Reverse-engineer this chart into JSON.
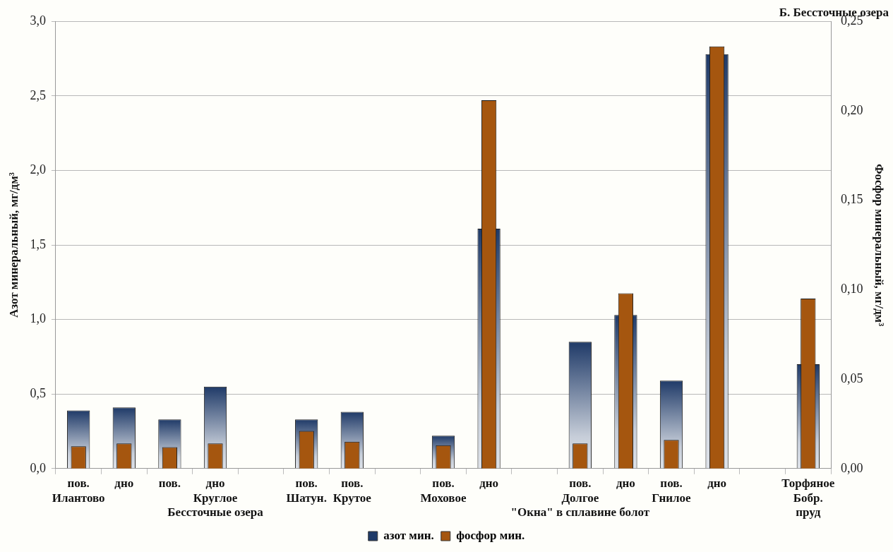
{
  "chart_data": {
    "type": "bar",
    "title": "Б. Бессточные озера",
    "ylabel": "Азот минеральный, мг/дм³",
    "y2label": "Фосфор минеральный, мг/дм³",
    "categories": [
      "пов.\nИлантово",
      "дно",
      "пов.",
      "дно\nКруглое\nБессточные озера",
      null,
      "пов.\nШатун.",
      "пов.\nКрутое",
      null,
      "пов.\nМоховое",
      "дно",
      null,
      "пов.\nДолгое\n\"Окна\" в сплавине болот",
      "дно",
      "пов.\nГнилое",
      "дно",
      null,
      "Торфяное\nБобр.\nпруд"
    ],
    "series": [
      {
        "name": "азот мин.",
        "color": "#1f3a68",
        "values": [
          0.39,
          0.41,
          0.33,
          0.55,
          null,
          0.33,
          0.38,
          null,
          0.22,
          1.61,
          null,
          0.85,
          1.03,
          0.59,
          2.78,
          null,
          0.7
        ]
      },
      {
        "name": "фосфор мин.",
        "color": "#a5560f",
        "axis": "y2",
        "values": [
          0.0125,
          0.014,
          0.012,
          0.014,
          null,
          0.021,
          0.015,
          null,
          0.013,
          0.206,
          null,
          0.014,
          0.098,
          0.016,
          0.236,
          null,
          0.095
        ]
      }
    ],
    "ylim": [
      0,
      3
    ],
    "yticks": [
      {
        "value": 0,
        "label": "0,0"
      },
      {
        "value": 0.5,
        "label": "0,5"
      },
      {
        "value": 1,
        "label": "1,0"
      },
      {
        "value": 1.5,
        "label": "1,5"
      },
      {
        "value": 2,
        "label": "2,0"
      },
      {
        "value": 2.5,
        "label": "2,5"
      },
      {
        "value": 3,
        "label": "3,0"
      }
    ],
    "y2lim": [
      0,
      0.25
    ],
    "y2ticks": [
      {
        "value": 0,
        "label": "0,00"
      },
      {
        "value": 0.05,
        "label": "0,05"
      },
      {
        "value": 0.1,
        "label": "0,10"
      },
      {
        "value": 0.15,
        "label": "0,15"
      },
      {
        "value": 0.2,
        "label": "0,20"
      },
      {
        "value": 0.25,
        "label": "0,25"
      }
    ],
    "grid": "y",
    "legend": "bottom"
  }
}
